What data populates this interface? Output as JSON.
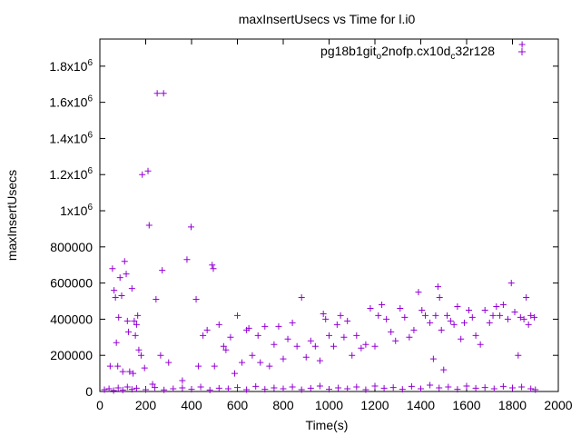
{
  "chart_data": {
    "type": "scatter",
    "title": "maxInsertUsecs vs Time for l.i0",
    "xlabel": "Time(s)",
    "ylabel": "maxInsertUsecs",
    "xlim": [
      0,
      2000
    ],
    "ylim": [
      0,
      1950000
    ],
    "x_ticks": [
      {
        "value": 0,
        "label": "0"
      },
      {
        "value": 200,
        "label": "200"
      },
      {
        "value": 400,
        "label": "400"
      },
      {
        "value": 600,
        "label": "600"
      },
      {
        "value": 800,
        "label": "800"
      },
      {
        "value": 1000,
        "label": "1000"
      },
      {
        "value": 1200,
        "label": "1200"
      },
      {
        "value": 1400,
        "label": "1400"
      },
      {
        "value": 1600,
        "label": "1600"
      },
      {
        "value": 1800,
        "label": "1800"
      },
      {
        "value": 2000,
        "label": "2000"
      }
    ],
    "y_ticks": [
      {
        "value": 0,
        "label": "0"
      },
      {
        "value": 200000,
        "label": "200000"
      },
      {
        "value": 400000,
        "label": "400000"
      },
      {
        "value": 600000,
        "label": "600000"
      },
      {
        "value": 800000,
        "label": "800000"
      },
      {
        "value": 1000000,
        "label": "1x10",
        "exp": "6"
      },
      {
        "value": 1200000,
        "label": "1.2x10",
        "exp": "6"
      },
      {
        "value": 1400000,
        "label": "1.4x10",
        "exp": "6"
      },
      {
        "value": 1600000,
        "label": "1.6x10",
        "exp": "6"
      },
      {
        "value": 1800000,
        "label": "1.8x10",
        "exp": "6"
      }
    ],
    "grid": false,
    "legend_position": "top-right",
    "series": [
      {
        "name": "pg18b1git_o2nofp.cx10d_c32r128",
        "legend_parts": [
          {
            "text": "pg18b1git",
            "sub": false
          },
          {
            "text": "o",
            "sub": true
          },
          {
            "text": "2nofp.cx10d",
            "sub": false
          },
          {
            "text": "c",
            "sub": true
          },
          {
            "text": "32r128",
            "sub": false
          }
        ],
        "color": "#9400d3",
        "marker": "plus",
        "points": [
          [
            45,
            140000
          ],
          [
            55,
            680000
          ],
          [
            62,
            560000
          ],
          [
            68,
            520000
          ],
          [
            72,
            270000
          ],
          [
            78,
            140000
          ],
          [
            82,
            410000
          ],
          [
            88,
            630000
          ],
          [
            95,
            530000
          ],
          [
            100,
            110000
          ],
          [
            108,
            720000
          ],
          [
            115,
            650000
          ],
          [
            120,
            390000
          ],
          [
            125,
            330000
          ],
          [
            130,
            110000
          ],
          [
            140,
            570000
          ],
          [
            145,
            100000
          ],
          [
            150,
            390000
          ],
          [
            155,
            310000
          ],
          [
            160,
            370000
          ],
          [
            165,
            420000
          ],
          [
            170,
            230000
          ],
          [
            180,
            200000
          ],
          [
            185,
            1200000
          ],
          [
            195,
            130000
          ],
          [
            210,
            1220000
          ],
          [
            215,
            920000
          ],
          [
            230,
            40000
          ],
          [
            245,
            510000
          ],
          [
            250,
            1650000
          ],
          [
            265,
            200000
          ],
          [
            272,
            670000
          ],
          [
            278,
            1650000
          ],
          [
            300,
            160000
          ],
          [
            360,
            60000
          ],
          [
            380,
            730000
          ],
          [
            398,
            910000
          ],
          [
            420,
            510000
          ],
          [
            430,
            140000
          ],
          [
            450,
            310000
          ],
          [
            468,
            340000
          ],
          [
            490,
            700000
          ],
          [
            495,
            680000
          ],
          [
            500,
            140000
          ],
          [
            520,
            370000
          ],
          [
            540,
            250000
          ],
          [
            550,
            230000
          ],
          [
            570,
            300000
          ],
          [
            588,
            100000
          ],
          [
            600,
            420000
          ],
          [
            620,
            160000
          ],
          [
            640,
            340000
          ],
          [
            650,
            350000
          ],
          [
            665,
            200000
          ],
          [
            690,
            310000
          ],
          [
            700,
            160000
          ],
          [
            720,
            360000
          ],
          [
            740,
            140000
          ],
          [
            760,
            260000
          ],
          [
            780,
            360000
          ],
          [
            800,
            180000
          ],
          [
            820,
            290000
          ],
          [
            840,
            380000
          ],
          [
            860,
            250000
          ],
          [
            880,
            520000
          ],
          [
            900,
            190000
          ],
          [
            920,
            280000
          ],
          [
            940,
            250000
          ],
          [
            960,
            170000
          ],
          [
            975,
            430000
          ],
          [
            985,
            400000
          ],
          [
            1000,
            310000
          ],
          [
            1020,
            250000
          ],
          [
            1035,
            370000
          ],
          [
            1050,
            420000
          ],
          [
            1065,
            300000
          ],
          [
            1080,
            390000
          ],
          [
            1100,
            200000
          ],
          [
            1120,
            310000
          ],
          [
            1140,
            240000
          ],
          [
            1160,
            260000
          ],
          [
            1180,
            460000
          ],
          [
            1200,
            250000
          ],
          [
            1215,
            420000
          ],
          [
            1230,
            480000
          ],
          [
            1250,
            400000
          ],
          [
            1270,
            330000
          ],
          [
            1290,
            280000
          ],
          [
            1310,
            460000
          ],
          [
            1330,
            410000
          ],
          [
            1350,
            300000
          ],
          [
            1370,
            340000
          ],
          [
            1390,
            550000
          ],
          [
            1405,
            450000
          ],
          [
            1420,
            420000
          ],
          [
            1440,
            380000
          ],
          [
            1455,
            180000
          ],
          [
            1465,
            420000
          ],
          [
            1475,
            580000
          ],
          [
            1482,
            520000
          ],
          [
            1490,
            340000
          ],
          [
            1500,
            120000
          ],
          [
            1515,
            420000
          ],
          [
            1530,
            390000
          ],
          [
            1545,
            370000
          ],
          [
            1560,
            470000
          ],
          [
            1575,
            290000
          ],
          [
            1590,
            380000
          ],
          [
            1610,
            450000
          ],
          [
            1625,
            410000
          ],
          [
            1640,
            310000
          ],
          [
            1660,
            260000
          ],
          [
            1680,
            450000
          ],
          [
            1700,
            380000
          ],
          [
            1715,
            420000
          ],
          [
            1730,
            470000
          ],
          [
            1745,
            420000
          ],
          [
            1760,
            480000
          ],
          [
            1780,
            400000
          ],
          [
            1795,
            600000
          ],
          [
            1810,
            440000
          ],
          [
            1825,
            200000
          ],
          [
            1835,
            410000
          ],
          [
            1842,
            1920000
          ],
          [
            1850,
            400000
          ],
          [
            1860,
            520000
          ],
          [
            1870,
            370000
          ],
          [
            1880,
            420000
          ],
          [
            1895,
            410000
          ],
          [
            20,
            10000
          ],
          [
            40,
            15000
          ],
          [
            60,
            5000
          ],
          [
            80,
            20000
          ],
          [
            100,
            8000
          ],
          [
            120,
            25000
          ],
          [
            140,
            12000
          ],
          [
            160,
            18000
          ],
          [
            200,
            10000
          ],
          [
            240,
            22000
          ],
          [
            280,
            9000
          ],
          [
            320,
            15000
          ],
          [
            360,
            20000
          ],
          [
            400,
            12000
          ],
          [
            440,
            25000
          ],
          [
            480,
            8000
          ],
          [
            520,
            18000
          ],
          [
            560,
            15000
          ],
          [
            600,
            22000
          ],
          [
            640,
            10000
          ],
          [
            680,
            28000
          ],
          [
            720,
            12000
          ],
          [
            760,
            20000
          ],
          [
            800,
            15000
          ],
          [
            840,
            25000
          ],
          [
            880,
            10000
          ],
          [
            920,
            18000
          ],
          [
            960,
            30000
          ],
          [
            1000,
            12000
          ],
          [
            1040,
            20000
          ],
          [
            1080,
            15000
          ],
          [
            1120,
            25000
          ],
          [
            1160,
            10000
          ],
          [
            1200,
            30000
          ],
          [
            1240,
            18000
          ],
          [
            1280,
            22000
          ],
          [
            1320,
            12000
          ],
          [
            1360,
            28000
          ],
          [
            1400,
            15000
          ],
          [
            1440,
            35000
          ],
          [
            1480,
            20000
          ],
          [
            1520,
            25000
          ],
          [
            1560,
            12000
          ],
          [
            1600,
            30000
          ],
          [
            1640,
            18000
          ],
          [
            1680,
            22000
          ],
          [
            1720,
            15000
          ],
          [
            1760,
            28000
          ],
          [
            1800,
            20000
          ],
          [
            1840,
            25000
          ],
          [
            1880,
            15000
          ],
          [
            1900,
            10000
          ]
        ]
      }
    ]
  }
}
